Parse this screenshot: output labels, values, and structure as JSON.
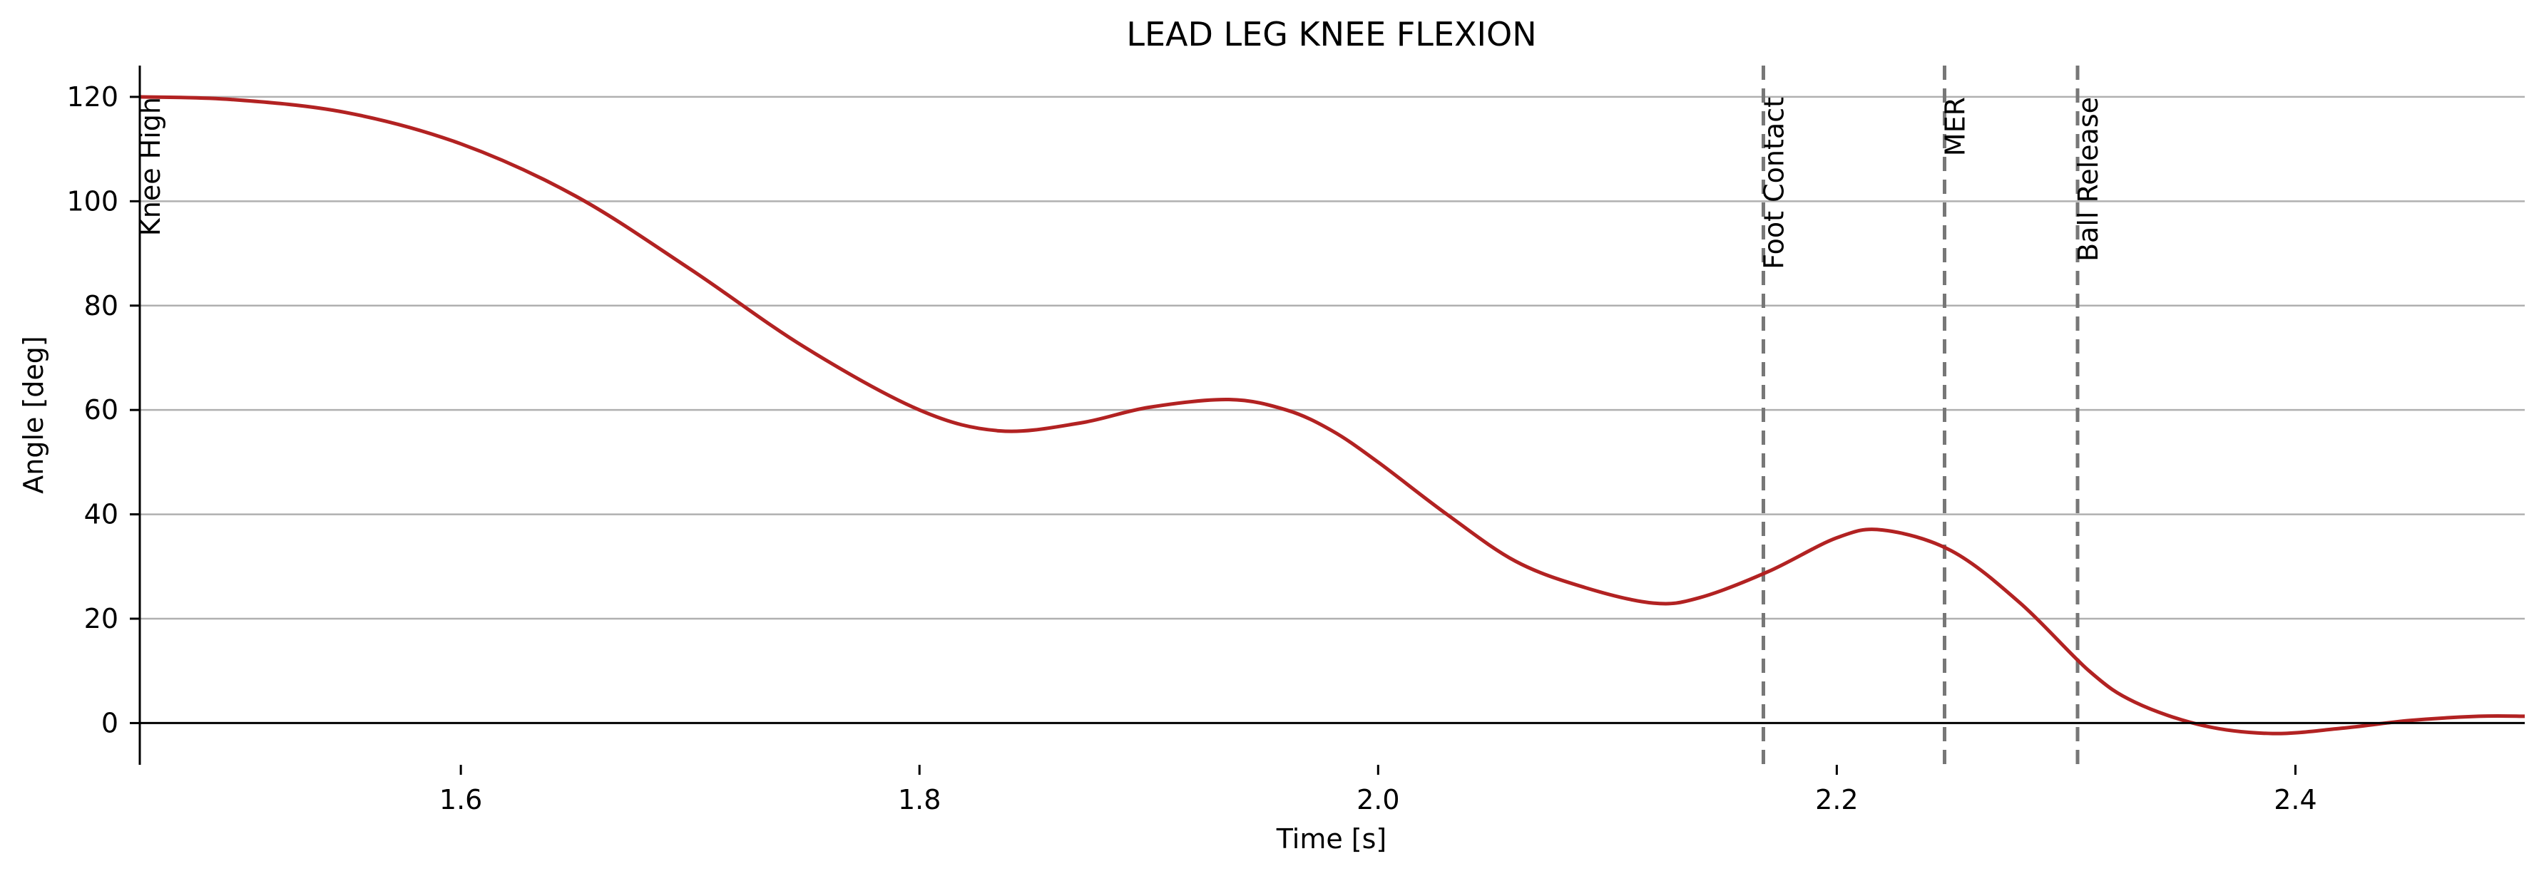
{
  "chart_data": {
    "type": "line",
    "title": "LEAD LEG KNEE FLEXION",
    "xlabel": "Time [s]",
    "ylabel": "Angle [deg]",
    "xlim": [
      1.46,
      2.5
    ],
    "ylim": [
      -8,
      126
    ],
    "xticks": [
      1.6,
      1.8,
      2.0,
      2.2,
      2.4
    ],
    "xtick_labels": [
      "1.6",
      "1.8",
      "2.0",
      "2.2",
      "2.4"
    ],
    "yticks": [
      0,
      20,
      40,
      60,
      80,
      100,
      120
    ],
    "ytick_labels": [
      "0",
      "20",
      "40",
      "60",
      "80",
      "100",
      "120"
    ],
    "grid": "horizontal",
    "zero_line": true,
    "series": [
      {
        "color": "#B22222",
        "points": [
          [
            1.46,
            120
          ],
          [
            1.5,
            119.5
          ],
          [
            1.55,
            117
          ],
          [
            1.6,
            111
          ],
          [
            1.65,
            101
          ],
          [
            1.7,
            87
          ],
          [
            1.75,
            72
          ],
          [
            1.8,
            60
          ],
          [
            1.835,
            56
          ],
          [
            1.87,
            57.5
          ],
          [
            1.9,
            60.5
          ],
          [
            1.935,
            62
          ],
          [
            1.96,
            60
          ],
          [
            1.98,
            56
          ],
          [
            2.0,
            50
          ],
          [
            2.03,
            40
          ],
          [
            2.06,
            31
          ],
          [
            2.09,
            26
          ],
          [
            2.12,
            23
          ],
          [
            2.14,
            24
          ],
          [
            2.17,
            29
          ],
          [
            2.2,
            35.5
          ],
          [
            2.22,
            37
          ],
          [
            2.25,
            33
          ],
          [
            2.28,
            23
          ],
          [
            2.31,
            10
          ],
          [
            2.33,
            4
          ],
          [
            2.36,
            -0.5
          ],
          [
            2.39,
            -2
          ],
          [
            2.42,
            -1
          ],
          [
            2.45,
            0.5
          ],
          [
            2.48,
            1.3
          ],
          [
            2.5,
            1.3
          ]
        ]
      }
    ],
    "events": [
      {
        "label": "Knee High",
        "x": 1.46
      },
      {
        "label": "Foot Contact",
        "x": 2.168
      },
      {
        "label": "MER",
        "x": 2.247
      },
      {
        "label": "Ball Release",
        "x": 2.305
      }
    ],
    "colors": {
      "line": "#B22222",
      "grid": "#b0b0b0",
      "event_line": "#777777",
      "axis": "#000000"
    }
  }
}
